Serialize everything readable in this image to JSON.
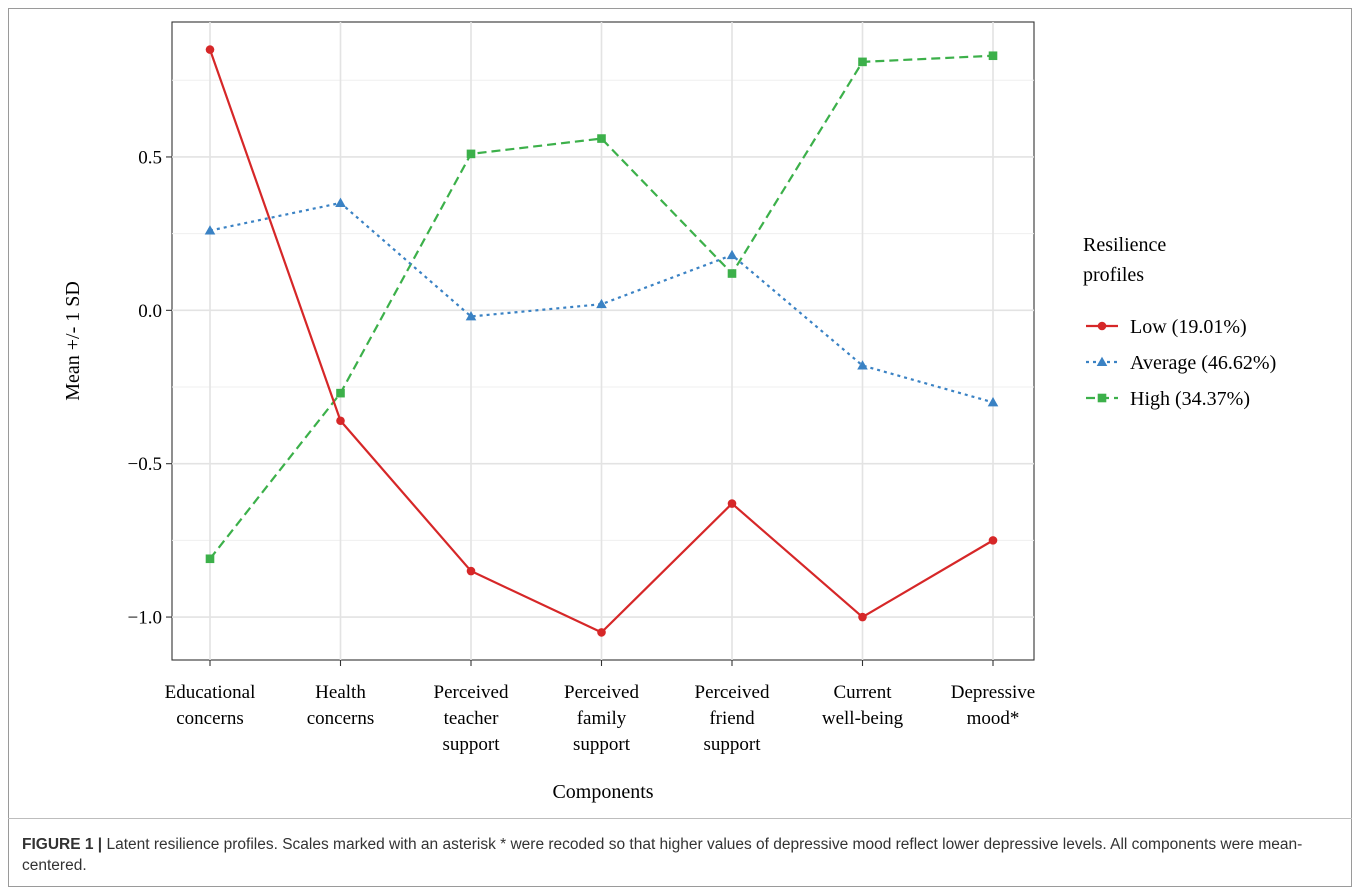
{
  "caption": {
    "label": "FIGURE 1 |",
    "text": " Latent resilience profiles. Scales marked with an asterisk * were recoded so that higher values of depressive mood reflect lower depressive levels. All components were mean-centered."
  },
  "chart_data": {
    "type": "line",
    "xlabel": "Components",
    "ylabel": "Mean +/- 1 SD",
    "ylim": [
      -1.14,
      0.94
    ],
    "yticks": [
      0.5,
      0.0,
      -0.5,
      -1.0
    ],
    "ytick_labels": [
      "0.5",
      "0.0",
      "−0.5",
      "−1.0"
    ],
    "grid": true,
    "legend_position": "right",
    "legend_title": [
      "Resilience",
      "profiles"
    ],
    "categories": [
      [
        "Educational",
        "concerns"
      ],
      [
        "Health",
        "concerns"
      ],
      [
        "Perceived",
        "teacher",
        "support"
      ],
      [
        "Perceived",
        "family",
        "support"
      ],
      [
        "Perceived",
        "friend",
        "support"
      ],
      [
        "Current",
        "well-being"
      ],
      [
        "Depressive",
        "mood*"
      ]
    ],
    "series": [
      {
        "name": "Low (19.01%)",
        "color": "#d62728",
        "dash": "solid",
        "marker": "circle",
        "values": [
          0.85,
          -0.36,
          -0.85,
          -1.05,
          -0.63,
          -1.0,
          -0.75
        ]
      },
      {
        "name": "Average (46.62%)",
        "color": "#3a82c4",
        "dash": "dotted",
        "marker": "triangle",
        "values": [
          0.26,
          0.35,
          -0.02,
          0.02,
          0.18,
          -0.18,
          -0.3
        ]
      },
      {
        "name": "High (34.37%)",
        "color": "#3cb04a",
        "dash": "dashed",
        "marker": "square",
        "values": [
          -0.81,
          -0.27,
          0.51,
          0.56,
          0.12,
          0.81,
          0.83
        ]
      }
    ]
  }
}
